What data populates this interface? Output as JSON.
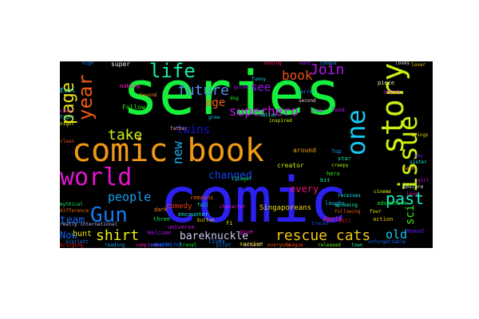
{
  "background": "#000000",
  "page_background": "#ffffff",
  "words": [
    {
      "text": "comic",
      "color": "#2b20f0",
      "vertical": false
    },
    {
      "text": "series",
      "color": "#14f03c",
      "vertical": false
    },
    {
      "text": "comic book",
      "color": "#f09a14",
      "vertical": false
    },
    {
      "text": "story",
      "color": "#c8f014",
      "vertical": true
    },
    {
      "text": "world",
      "color": "#e614d2",
      "vertical": false
    },
    {
      "text": "one",
      "color": "#14c8f0",
      "vertical": true
    },
    {
      "text": "issue",
      "color": "#c8f014",
      "vertical": true
    },
    {
      "text": "Gun",
      "color": "#1478f0",
      "vertical": false
    },
    {
      "text": "year",
      "color": "#f05a14",
      "vertical": true
    },
    {
      "text": "life",
      "color": "#14f0a0",
      "vertical": false
    },
    {
      "text": "page",
      "color": "#f0e614",
      "vertical": true
    },
    {
      "text": "future",
      "color": "#5a8cf0",
      "vertical": false
    },
    {
      "text": "new",
      "color": "#14b4f0",
      "vertical": true
    },
    {
      "text": "take",
      "color": "#d2f014",
      "vertical": false
    },
    {
      "text": "book",
      "color": "#f05014",
      "vertical": false
    },
    {
      "text": "Join",
      "color": "#b414f0",
      "vertical": false
    },
    {
      "text": "past",
      "color": "#14f0c8",
      "vertical": false
    },
    {
      "text": "rescue cats",
      "color": "#f0c814",
      "vertical": false
    },
    {
      "text": "shirt",
      "color": "#f0f014",
      "vertical": false
    },
    {
      "text": "twins",
      "color": "#1414d2",
      "vertical": false
    },
    {
      "text": "see",
      "color": "#9614f0",
      "vertical": false
    },
    {
      "text": "age",
      "color": "#f06414",
      "vertical": false
    },
    {
      "text": "superhero",
      "color": "#c814f0",
      "vertical": false
    },
    {
      "text": "people",
      "color": "#14a0f0",
      "vertical": false
    },
    {
      "text": "team",
      "color": "#1464f0",
      "vertical": false
    },
    {
      "text": "bareknuckle",
      "color": "#c8c8f0",
      "vertical": false
    },
    {
      "text": "changed",
      "color": "#1446f0",
      "vertical": false
    },
    {
      "text": "every",
      "color": "#f01478",
      "vertical": false
    },
    {
      "text": "old",
      "color": "#14c8f0",
      "vertical": false
    },
    {
      "text": "sci",
      "color": "#3cf014",
      "vertical": true
    },
    {
      "text": "Now",
      "color": "#1464f0",
      "vertical": false
    },
    {
      "text": "hunt",
      "color": "#f0e614",
      "vertical": false
    },
    {
      "text": "comedy",
      "color": "#f03c14",
      "vertical": false
    },
    {
      "text": "Singaporeans",
      "color": "#f0dc14",
      "vertical": false
    },
    {
      "text": "adventure",
      "color": "#14f03c",
      "vertical": false
    },
    {
      "text": "mankind",
      "color": "#1450f0",
      "vertical": false
    },
    {
      "text": "Welcome",
      "color": "#a014f0",
      "vertical": false
    },
    {
      "text": "Apple",
      "color": "#f01428",
      "vertical": false
    },
    {
      "text": "creator",
      "color": "#c8f014",
      "vertical": false
    },
    {
      "text": "around",
      "color": "#f0a014",
      "vertical": false
    },
    {
      "text": "Follow",
      "color": "#28f014",
      "vertical": false
    },
    {
      "text": "making",
      "color": "#f014b4",
      "vertical": false
    },
    {
      "text": "super",
      "color": "#f0f0f0",
      "vertical": false
    },
    {
      "text": "Evil",
      "color": "#14f0f0",
      "vertical": false
    },
    {
      "text": "remains",
      "color": "#f06414",
      "vertical": false
    },
    {
      "text": "lives",
      "color": "#1482f0",
      "vertical": false
    },
    {
      "text": "give",
      "color": "#f014dc",
      "vertical": false
    },
    {
      "text": "three",
      "color": "#14f050",
      "vertical": false
    },
    {
      "text": "universe",
      "color": "#c814f0",
      "vertical": false
    },
    {
      "text": "encounter",
      "color": "#14f0dc",
      "vertical": false
    },
    {
      "text": "dark",
      "color": "#f08c14",
      "vertical": false
    },
    {
      "text": "bringing",
      "color": "#f01414",
      "vertical": false
    },
    {
      "text": "survive",
      "color": "#dcf014",
      "vertical": false
    },
    {
      "text": "fi",
      "color": "#f0f014",
      "vertical": false
    },
    {
      "text": "bit",
      "color": "#14f0b4",
      "vertical": false
    },
    {
      "text": "laughs",
      "color": "#14b4f0",
      "vertical": false
    },
    {
      "text": "tracks",
      "color": "#1450f0",
      "vertical": false
    },
    {
      "text": "action",
      "color": "#f0c814",
      "vertical": false
    },
    {
      "text": "Nomad",
      "color": "#6414f0",
      "vertical": false
    },
    {
      "text": "Top",
      "color": "#1496f0",
      "vertical": false
    },
    {
      "text": "star",
      "color": "#14f0a0",
      "vertical": false
    },
    {
      "text": "hero",
      "color": "#3cf014",
      "vertical": false
    },
    {
      "text": "food",
      "color": "#b414f0",
      "vertical": false
    },
    {
      "text": "second",
      "color": "#f0c8c8",
      "vertical": false
    },
    {
      "text": "horror",
      "color": "#14a0f0",
      "vertical": false
    },
    {
      "text": "dog",
      "color": "#28f014",
      "vertical": false
    },
    {
      "text": "piece",
      "color": "#f0f0a0",
      "vertical": false
    },
    {
      "text": "search",
      "color": "#e614f0",
      "vertical": false
    },
    {
      "text": "father",
      "color": "#f0a0a0",
      "vertical": false
    },
    {
      "text": "creepy",
      "color": "#a0f014",
      "vertical": false
    },
    {
      "text": "upcoming",
      "color": "#14f0c8",
      "vertical": false
    },
    {
      "text": "following",
      "color": "#f05a14",
      "vertical": false
    },
    {
      "text": "girl",
      "color": "#c814f0",
      "vertical": false
    },
    {
      "text": "funny",
      "color": "#14dcf0",
      "vertical": false
    },
    {
      "text": "want",
      "color": "#8c14f0",
      "vertical": false
    },
    {
      "text": "high",
      "color": "#1482f0",
      "vertical": false
    },
    {
      "text": "cinema",
      "color": "#f0f014",
      "vertical": false
    },
    {
      "text": "really international",
      "color": "#b4b4f0",
      "vertical": false
    },
    {
      "text": "Scarlett",
      "color": "#1478f0",
      "vertical": false
    },
    {
      "text": "vampires",
      "color": "#f014a0",
      "vertical": false
    },
    {
      "text": "mythical",
      "color": "#14f064",
      "vertical": false
    },
    {
      "text": "button",
      "color": "#f0dc14",
      "vertical": false
    },
    {
      "text": "reading",
      "color": "#14a0f0",
      "vertical": false
    },
    {
      "text": "everyone",
      "color": "#f05014",
      "vertical": false
    },
    {
      "text": "released",
      "color": "#64f014",
      "vertical": false
    },
    {
      "text": "receives",
      "color": "#14f0f0",
      "vertical": false
    },
    {
      "text": "character",
      "color": "#f014f0",
      "vertical": false
    },
    {
      "text": "unforgettable",
      "color": "#1464f0",
      "vertical": false
    },
    {
      "text": "math",
      "color": "#f0a014",
      "vertical": false
    },
    {
      "text": "full",
      "color": "#14f0a0",
      "vertical": false
    },
    {
      "text": "ending",
      "color": "#f01464",
      "vertical": false
    },
    {
      "text": "loves",
      "color": "#dcdcdc",
      "vertical": false
    },
    {
      "text": "lover",
      "color": "#f0c814",
      "vertical": false
    },
    {
      "text": "grew",
      "color": "#14c8f0",
      "vertical": false
    },
    {
      "text": "order",
      "color": "#b414f0",
      "vertical": false
    },
    {
      "text": "beyond",
      "color": "#f08c14",
      "vertical": false
    },
    {
      "text": "illegal",
      "color": "#14f064",
      "vertical": false
    },
    {
      "text": "jungle",
      "color": "#1496f0",
      "vertical": false
    },
    {
      "text": "four",
      "color": "#f0f014",
      "vertical": false
    },
    {
      "text": "mill",
      "color": "#f01428",
      "vertical": false
    },
    {
      "text": "obscure",
      "color": "#c8f0c8",
      "vertical": false
    },
    {
      "text": "love",
      "color": "#f014b4",
      "vertical": false
    },
    {
      "text": "sister",
      "color": "#14f0dc",
      "vertical": false
    },
    {
      "text": "difference",
      "color": "#f06414",
      "vertical": false
    },
    {
      "text": "research",
      "color": "#1464f0",
      "vertical": false
    },
    {
      "text": "inspired",
      "color": "#dcf014",
      "vertical": false
    },
    {
      "text": "guide",
      "color": "#a014f0",
      "vertical": false
    },
    {
      "text": "nation",
      "color": "#14f0b4",
      "vertical": false
    },
    {
      "text": "mutant",
      "color": "#f0a0a0",
      "vertical": false
    },
    {
      "text": "league",
      "color": "#f03c14",
      "vertical": false
    },
    {
      "text": "pilot",
      "color": "#1482f0",
      "vertical": false
    },
    {
      "text": "travel",
      "color": "#14f028",
      "vertical": false
    },
    {
      "text": "brings",
      "color": "#f0c814",
      "vertical": false
    },
    {
      "text": "cover",
      "color": "#f014dc",
      "vertical": false
    },
    {
      "text": "fight",
      "color": "#14dcf0",
      "vertical": false
    },
    {
      "text": "night",
      "color": "#f0f014",
      "vertical": false
    },
    {
      "text": "clean",
      "color": "#f05014",
      "vertical": false
    },
    {
      "text": "pay",
      "color": "#6414f0",
      "vertical": false
    },
    {
      "text": "town",
      "color": "#14f0a0",
      "vertical": false
    }
  ]
}
